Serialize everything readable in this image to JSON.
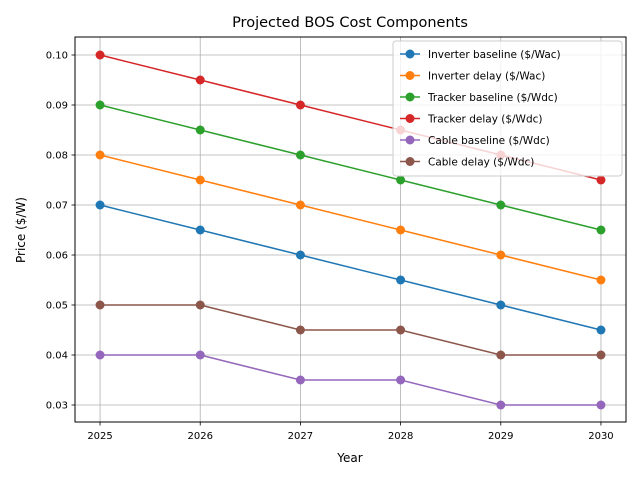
{
  "chart_data": {
    "type": "line",
    "title": "Projected BOS Cost Components",
    "xlabel": "Year",
    "ylabel": "Price ($/W)",
    "x": [
      2025,
      2026,
      2027,
      2028,
      2029,
      2030
    ],
    "xlim": [
      2024.75,
      2030.25
    ],
    "ylim": [
      0.0266,
      0.1036
    ],
    "xticks": [
      "2025",
      "2026",
      "2027",
      "2028",
      "2029",
      "2030"
    ],
    "yticks": [
      0.03,
      0.04,
      0.05,
      0.06,
      0.07,
      0.08,
      0.09,
      0.1
    ],
    "ytick_labels": [
      "0.03",
      "0.04",
      "0.05",
      "0.06",
      "0.07",
      "0.08",
      "0.09",
      "0.10"
    ],
    "grid": true,
    "legend_position": "top-right",
    "series": [
      {
        "name": "Inverter baseline ($/Wac)",
        "color": "#1f77b4",
        "values": [
          0.07,
          0.065,
          0.06,
          0.055,
          0.05,
          0.045
        ]
      },
      {
        "name": "Inverter delay ($/Wac)",
        "color": "#ff7f0e",
        "values": [
          0.08,
          0.075,
          0.07,
          0.065,
          0.06,
          0.055
        ]
      },
      {
        "name": "Tracker baseline ($/Wdc)",
        "color": "#2ca02c",
        "values": [
          0.09,
          0.085,
          0.08,
          0.075,
          0.07,
          0.065
        ]
      },
      {
        "name": "Tracker delay ($/Wdc)",
        "color": "#d62728",
        "values": [
          0.1,
          0.095,
          0.09,
          0.085,
          0.08,
          0.075
        ]
      },
      {
        "name": "Cable baseline ($/Wdc)",
        "color": "#9467bd",
        "values": [
          0.04,
          0.04,
          0.035,
          0.035,
          0.03,
          0.03
        ]
      },
      {
        "name": "Cable delay ($/Wdc)",
        "color": "#8c564b",
        "values": [
          0.05,
          0.05,
          0.045,
          0.045,
          0.04,
          0.04
        ]
      }
    ]
  }
}
